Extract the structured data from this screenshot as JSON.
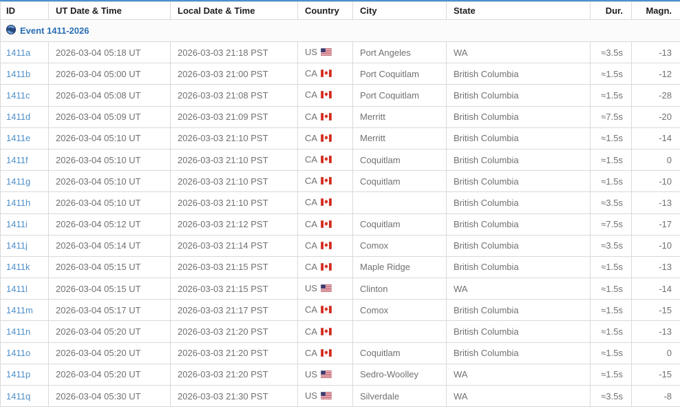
{
  "table": {
    "columns": [
      {
        "key": "id",
        "label": "ID"
      },
      {
        "key": "ut",
        "label": "UT Date & Time"
      },
      {
        "key": "local",
        "label": "Local Date & Time"
      },
      {
        "key": "country",
        "label": "Country"
      },
      {
        "key": "city",
        "label": "City"
      },
      {
        "key": "state",
        "label": "State"
      },
      {
        "key": "dur",
        "label": "Dur."
      },
      {
        "key": "magn",
        "label": "Magn."
      }
    ],
    "event_group": {
      "label": "Event 1411-2026",
      "icon": "globe-icon"
    },
    "rows": [
      {
        "id": "1411a",
        "ut": "2026-03-04 05:18 UT",
        "local": "2026-03-03 21:18 PST",
        "country": "US",
        "flag": "us",
        "city": "Port Angeles",
        "state": "WA",
        "dur": "≈3.5s",
        "magn": "-13"
      },
      {
        "id": "1411b",
        "ut": "2026-03-04 05:00 UT",
        "local": "2026-03-03 21:00 PST",
        "country": "CA",
        "flag": "ca",
        "city": "Port Coquitlam",
        "state": "British Columbia",
        "dur": "≈1.5s",
        "magn": "-12"
      },
      {
        "id": "1411c",
        "ut": "2026-03-04 05:08 UT",
        "local": "2026-03-03 21:08 PST",
        "country": "CA",
        "flag": "ca",
        "city": "Port Coquitlam",
        "state": "British Columbia",
        "dur": "≈1.5s",
        "magn": "-28"
      },
      {
        "id": "1411d",
        "ut": "2026-03-04 05:09 UT",
        "local": "2026-03-03 21:09 PST",
        "country": "CA",
        "flag": "ca",
        "city": "Merritt",
        "state": "British Columbia",
        "dur": "≈7.5s",
        "magn": "-20"
      },
      {
        "id": "1411e",
        "ut": "2026-03-04 05:10 UT",
        "local": "2026-03-03 21:10 PST",
        "country": "CA",
        "flag": "ca",
        "city": "Merritt",
        "state": "British Columbia",
        "dur": "≈1.5s",
        "magn": "-14"
      },
      {
        "id": "1411f",
        "ut": "2026-03-04 05:10 UT",
        "local": "2026-03-03 21:10 PST",
        "country": "CA",
        "flag": "ca",
        "city": "Coquitlam",
        "state": "British Columbia",
        "dur": "≈1.5s",
        "magn": "0"
      },
      {
        "id": "1411g",
        "ut": "2026-03-04 05:10 UT",
        "local": "2026-03-03 21:10 PST",
        "country": "CA",
        "flag": "ca",
        "city": "Coquitlam",
        "state": "British Columbia",
        "dur": "≈1.5s",
        "magn": "-10"
      },
      {
        "id": "1411h",
        "ut": "2026-03-04 05:10 UT",
        "local": "2026-03-03 21:10 PST",
        "country": "CA",
        "flag": "ca",
        "city": "",
        "state": "British Columbia",
        "dur": "≈3.5s",
        "magn": "-13"
      },
      {
        "id": "1411i",
        "ut": "2026-03-04 05:12 UT",
        "local": "2026-03-03 21:12 PST",
        "country": "CA",
        "flag": "ca",
        "city": "Coquitlam",
        "state": "British Columbia",
        "dur": "≈7.5s",
        "magn": "-17"
      },
      {
        "id": "1411j",
        "ut": "2026-03-04 05:14 UT",
        "local": "2026-03-03 21:14 PST",
        "country": "CA",
        "flag": "ca",
        "city": "Comox",
        "state": "British Columbia",
        "dur": "≈3.5s",
        "magn": "-10"
      },
      {
        "id": "1411k",
        "ut": "2026-03-04 05:15 UT",
        "local": "2026-03-03 21:15 PST",
        "country": "CA",
        "flag": "ca",
        "city": "Maple Ridge",
        "state": "British Columbia",
        "dur": "≈1.5s",
        "magn": "-13"
      },
      {
        "id": "1411l",
        "ut": "2026-03-04 05:15 UT",
        "local": "2026-03-03 21:15 PST",
        "country": "US",
        "flag": "us",
        "city": "Clinton",
        "state": "WA",
        "dur": "≈1.5s",
        "magn": "-14"
      },
      {
        "id": "1411m",
        "ut": "2026-03-04 05:17 UT",
        "local": "2026-03-03 21:17 PST",
        "country": "CA",
        "flag": "ca",
        "city": "Comox",
        "state": "British Columbia",
        "dur": "≈1.5s",
        "magn": "-15"
      },
      {
        "id": "1411n",
        "ut": "2026-03-04 05:20 UT",
        "local": "2026-03-03 21:20 PST",
        "country": "CA",
        "flag": "ca",
        "city": "",
        "state": "British Columbia",
        "dur": "≈1.5s",
        "magn": "-13"
      },
      {
        "id": "1411o",
        "ut": "2026-03-04 05:20 UT",
        "local": "2026-03-03 21:20 PST",
        "country": "CA",
        "flag": "ca",
        "city": "Coquitlam",
        "state": "British Columbia",
        "dur": "≈1.5s",
        "magn": "0"
      },
      {
        "id": "1411p",
        "ut": "2026-03-04 05:20 UT",
        "local": "2026-03-03 21:20 PST",
        "country": "US",
        "flag": "us",
        "city": "Sedro-Woolley",
        "state": "WA",
        "dur": "≈1.5s",
        "magn": "-15"
      },
      {
        "id": "1411q",
        "ut": "2026-03-04 05:30 UT",
        "local": "2026-03-03 21:30 PST",
        "country": "US",
        "flag": "us",
        "city": "Silverdale",
        "state": "WA",
        "dur": "≈3.5s",
        "magn": "-8"
      }
    ],
    "colors": {
      "accent_top_border": "#4a90d2",
      "id_link": "#4d8fca",
      "event_link": "#2a6db5",
      "grid_line": "#d9d9d9",
      "body_text": "#707070",
      "header_text": "#1c1c1c"
    }
  }
}
